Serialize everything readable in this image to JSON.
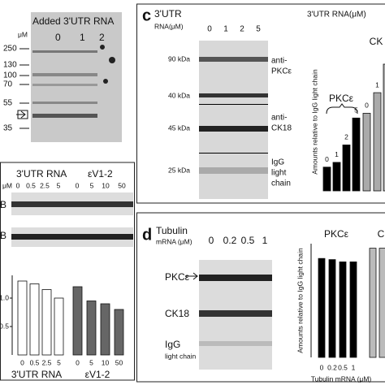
{
  "panel_b": {
    "title": "Added 3'UTR RNA",
    "unit": "μM",
    "lanes": [
      "0",
      "1",
      "2"
    ],
    "markers": [
      "250",
      "130",
      "100",
      "70",
      "55",
      "35"
    ]
  },
  "panel_e": {
    "groups": [
      "3'UTR RNA",
      "εV1-2"
    ],
    "unit": "μM",
    "lanes": [
      "0",
      "0.5",
      "2.5",
      "5",
      "0",
      "5",
      "10",
      "50"
    ],
    "row_labels": [
      "B",
      "B"
    ],
    "chart": {
      "type": "bar",
      "categories": [
        "0",
        "0.5",
        "2.5",
        "5",
        "0",
        "5",
        "10",
        "50"
      ],
      "values": [
        1.3,
        1.25,
        1.15,
        1.0,
        1.2,
        0.95,
        0.9,
        0.8
      ],
      "colors": [
        "#ffffff",
        "#ffffff",
        "#ffffff",
        "#ffffff",
        "#666666",
        "#666666",
        "#666666",
        "#666666"
      ],
      "ylim": [
        0,
        1.4
      ],
      "yticks": [
        0.5,
        {
          "value": 1,
          "label": "1.0"
        }
      ],
      "group_labels": [
        "3'UTR RNA",
        "εV1-2"
      ]
    }
  },
  "panel_c": {
    "letter": "c",
    "header": [
      "3'UTR",
      "RNA(μM)"
    ],
    "lanes": [
      "0",
      "1",
      "2",
      "5"
    ],
    "kda": [
      "90 kDa",
      "40 kDa",
      "45 kDa",
      "25 kDa"
    ],
    "row_labels": [
      [
        "anti-",
        "PKCε"
      ],
      [
        "anti-",
        "CK18"
      ],
      [
        "IgG",
        "light",
        "chain"
      ]
    ],
    "chart": {
      "type": "bar",
      "title": "3'UTR RNA(μM)",
      "ylabel": "Amounts relative to IgG light chain",
      "categories": [
        "0",
        "1",
        "2",
        "5",
        "0",
        "1",
        null
      ],
      "values": [
        0.15,
        0.18,
        0.29,
        0.46,
        0.49,
        0.62,
        0.8
      ],
      "colors": [
        "#000000",
        "#000000",
        "#000000",
        "#000000",
        "#aaaaaa",
        "#aaaaaa",
        "#aaaaaa"
      ],
      "ylim": [
        0,
        1
      ],
      "group_labels": [
        "PKCε",
        "CK"
      ]
    }
  },
  "panel_d": {
    "letter": "d",
    "header": [
      "Tubulin",
      "mRNA (μM)"
    ],
    "lanes": [
      "0",
      "0.2",
      "0.5",
      "1"
    ],
    "row_labels": [
      [
        "PKCε"
      ],
      [
        "CK18"
      ],
      [
        "IgG",
        "light chain"
      ]
    ],
    "chart": {
      "type": "bar",
      "ylabel": "Amounts relative to IgG light chain",
      "xlabel": "Tubulin mRNA (μM)",
      "categories": [
        "0",
        "0.2",
        "0.5",
        "1",
        null,
        null
      ],
      "values": [
        0.87,
        0.86,
        0.84,
        0.84,
        0.96,
        0.96
      ],
      "colors": [
        "#000000",
        "#000000",
        "#000000",
        "#000000",
        "#bbbbbb",
        "#bbbbbb"
      ],
      "ylim": [
        0,
        1
      ],
      "group_labels": [
        "PKCε",
        "C"
      ]
    }
  }
}
